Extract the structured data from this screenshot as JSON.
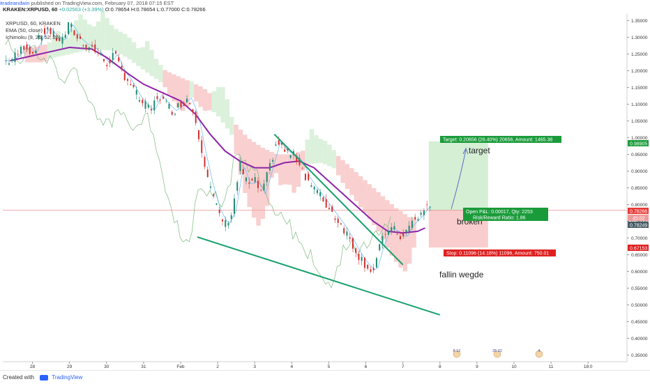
{
  "header": {
    "author": "itradeandwin",
    "published": "published on TradingView.com, February 07, 2018 07:15 EST",
    "symbol_line": "KRAKEN:XRPUSD, 60",
    "ohlc_text": "O:0.78654 H:0.78654 L:0.77000 C:0.78266",
    "change_text": "+0.02563 (+3.39%)",
    "last": "0.78266"
  },
  "legend": {
    "symbol": "XRPUSD, 60, KRAKEN",
    "ema": "EMA (50, close)",
    "ichimoku": "Ichimoku (9, 26, 52, 26)"
  },
  "annotations": {
    "target": "target",
    "broken": "broken",
    "wedge": "fallin wegde",
    "target_box": "Target: 0.20656 (26.40%) 20656, Amount: 1465.38",
    "open_pl": "Open P&L: 0.00017, Qty: 2253",
    "risk_reward": "Risk/Reward Ratio: 1.86",
    "stop_box": "Stop: 0.11096 (14.18%) 11096, Amount: 750.01",
    "event_flags": [
      "8 12",
      "25 22",
      "4"
    ]
  },
  "price_labels": {
    "target": "0.98905",
    "last": "0.78266",
    "countdown": "45:02",
    "entry": "0.78249",
    "stop": "0.67153"
  },
  "footer": {
    "created_with": "Created with",
    "brand": "TradingView"
  },
  "colors": {
    "ema": "#8e24aa",
    "trendline": "#16a06b",
    "cloud_bear": "#f4a8a8",
    "cloud_bull": "#bfe6c0",
    "up_candle": "#1f8a70",
    "down_candle": "#d32f2f",
    "target_zone": "#cdeccd",
    "stop_zone": "#f8c4c4",
    "target_label": "#1a9b3a",
    "stop_label": "#e02020",
    "last_line": "#e57373"
  },
  "chart_data": {
    "type": "candlestick",
    "ylim": [
      0.33,
      1.37
    ],
    "x_ticks": [
      "28",
      "29",
      "30",
      "31",
      "Feb",
      "2",
      "3",
      "4",
      "5",
      "6",
      "7",
      "8",
      "9",
      "10",
      "11",
      "18:0"
    ],
    "y_ticks": [
      "1.35000",
      "1.30000",
      "1.25000",
      "1.20000",
      "1.15000",
      "1.10000",
      "1.05000",
      "1.00000",
      "0.95000",
      "0.90000",
      "0.85000",
      "0.80000",
      "0.75000",
      "0.70000",
      "0.65000",
      "0.60000",
      "0.55000",
      "0.50000",
      "0.45000",
      "0.40000",
      "0.35000"
    ],
    "price_anchors": [
      [
        27.4,
        1.23
      ],
      [
        27.6,
        1.25
      ],
      [
        27.8,
        1.28
      ],
      [
        28.0,
        1.25
      ],
      [
        28.2,
        1.3
      ],
      [
        28.4,
        1.33
      ],
      [
        28.6,
        1.3
      ],
      [
        28.8,
        1.29
      ],
      [
        29.0,
        1.34
      ],
      [
        29.2,
        1.3
      ],
      [
        29.4,
        1.28
      ],
      [
        29.6,
        1.27
      ],
      [
        29.8,
        1.25
      ],
      [
        30.0,
        1.22
      ],
      [
        30.2,
        1.25
      ],
      [
        30.4,
        1.2
      ],
      [
        30.6,
        1.17
      ],
      [
        30.8,
        1.13
      ],
      [
        31.0,
        1.1
      ],
      [
        31.2,
        1.08
      ],
      [
        31.4,
        1.13
      ],
      [
        31.6,
        1.1
      ],
      [
        31.8,
        1.08
      ],
      [
        32.0,
        1.1
      ],
      [
        32.2,
        1.12
      ],
      [
        32.4,
        1.06
      ],
      [
        32.6,
        0.95
      ],
      [
        32.8,
        0.85
      ],
      [
        33.0,
        0.78
      ],
      [
        33.2,
        0.74
      ],
      [
        33.4,
        0.78
      ],
      [
        33.6,
        0.92
      ],
      [
        33.8,
        0.86
      ],
      [
        34.0,
        0.87
      ],
      [
        34.2,
        0.83
      ],
      [
        34.4,
        0.91
      ],
      [
        34.6,
        0.99
      ],
      [
        34.8,
        0.96
      ],
      [
        35.0,
        0.95
      ],
      [
        35.2,
        0.93
      ],
      [
        35.4,
        0.88
      ],
      [
        35.6,
        0.85
      ],
      [
        35.8,
        0.82
      ],
      [
        36.0,
        0.79
      ],
      [
        36.2,
        0.76
      ],
      [
        36.4,
        0.73
      ],
      [
        36.6,
        0.69
      ],
      [
        36.8,
        0.65
      ],
      [
        37.0,
        0.62
      ],
      [
        37.2,
        0.6
      ],
      [
        37.4,
        0.68
      ],
      [
        37.6,
        0.73
      ],
      [
        37.8,
        0.72
      ],
      [
        38.0,
        0.7
      ],
      [
        38.2,
        0.74
      ],
      [
        38.4,
        0.76
      ],
      [
        38.6,
        0.79
      ],
      [
        38.8,
        0.795
      ]
    ],
    "ema_anchors": [
      [
        27.4,
        1.23
      ],
      [
        28.0,
        1.245
      ],
      [
        28.6,
        1.26
      ],
      [
        29.0,
        1.27
      ],
      [
        29.6,
        1.265
      ],
      [
        30.0,
        1.24
      ],
      [
        30.6,
        1.19
      ],
      [
        31.0,
        1.16
      ],
      [
        31.6,
        1.13
      ],
      [
        32.0,
        1.11
      ],
      [
        32.4,
        1.07
      ],
      [
        32.8,
        1.01
      ],
      [
        33.2,
        0.96
      ],
      [
        33.6,
        0.93
      ],
      [
        34.0,
        0.91
      ],
      [
        34.4,
        0.91
      ],
      [
        34.8,
        0.925
      ],
      [
        35.2,
        0.93
      ],
      [
        35.6,
        0.91
      ],
      [
        36.0,
        0.87
      ],
      [
        36.4,
        0.83
      ],
      [
        36.8,
        0.79
      ],
      [
        37.2,
        0.75
      ],
      [
        37.6,
        0.72
      ],
      [
        38.0,
        0.715
      ],
      [
        38.4,
        0.72
      ],
      [
        38.6,
        0.73
      ]
    ],
    "trendlines": [
      {
        "name": "wedge-upper",
        "from": [
          34.53,
          1.01
        ],
        "to": [
          38.0,
          0.62
        ]
      },
      {
        "name": "wedge-lower",
        "from": [
          32.45,
          0.703
        ],
        "to": [
          39.0,
          0.47
        ]
      }
    ],
    "positions": {
      "entry": 0.7825,
      "target": 0.989,
      "stop": 0.6715,
      "start_x": 38.7,
      "end_x": 40.3
    }
  }
}
